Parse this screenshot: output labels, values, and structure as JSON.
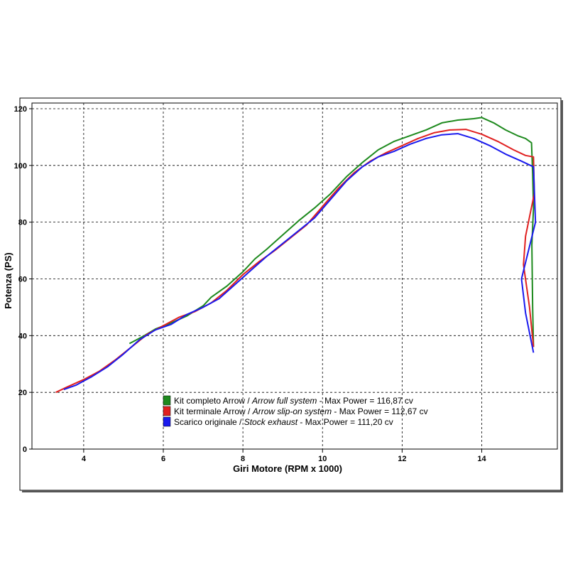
{
  "chart_data": {
    "type": "line",
    "xlabel": "Giri Motore (RPM x 1000)",
    "ylabel": "Potenza (PS)",
    "xlim": [
      2.7,
      15.9
    ],
    "ylim": [
      0,
      122
    ],
    "x_ticks": [
      4,
      6,
      8,
      10,
      12,
      14
    ],
    "y_ticks": [
      0,
      20,
      40,
      60,
      80,
      100,
      120
    ],
    "grid": true,
    "legend_position": "bottom-center",
    "series": [
      {
        "name": "Kit completo Arrow / Arrow full system - Max Power = 116,87 cv",
        "legend": {
          "normal": "Kit completo Arrow / ",
          "italic": "Arrow full system",
          "rest": " - Max Power = 116,87 cv"
        },
        "color": "#1e8a1e",
        "points": [
          [
            5.15,
            37.2
          ],
          [
            5.5,
            39.8
          ],
          [
            5.8,
            42.3
          ],
          [
            6.2,
            44.5
          ],
          [
            6.6,
            47.0
          ],
          [
            7.0,
            50.5
          ],
          [
            7.2,
            53.5
          ],
          [
            7.6,
            57.5
          ],
          [
            8.0,
            62.5
          ],
          [
            8.3,
            67.0
          ],
          [
            8.6,
            70.5
          ],
          [
            9.0,
            75.5
          ],
          [
            9.4,
            80.5
          ],
          [
            9.8,
            85.0
          ],
          [
            10.2,
            90.0
          ],
          [
            10.6,
            96.0
          ],
          [
            11.0,
            101.0
          ],
          [
            11.4,
            105.5
          ],
          [
            11.8,
            108.5
          ],
          [
            12.2,
            110.5
          ],
          [
            12.6,
            112.5
          ],
          [
            13.0,
            115.0
          ],
          [
            13.4,
            116.0
          ],
          [
            13.8,
            116.5
          ],
          [
            14.0,
            116.9
          ],
          [
            14.3,
            115.0
          ],
          [
            14.6,
            112.5
          ],
          [
            14.9,
            110.5
          ],
          [
            15.1,
            109.5
          ],
          [
            15.25,
            108.0
          ],
          [
            15.28,
            97.0
          ],
          [
            15.3,
            85.0
          ],
          [
            15.26,
            72.0
          ],
          [
            15.28,
            50.0
          ],
          [
            15.3,
            36.0
          ]
        ]
      },
      {
        "name": "Kit terminale Arrow / Arrow slip-on system - Max Power = 112,67 cv",
        "legend": {
          "normal": "Kit terminale Arrow / ",
          "italic": "Arrow slip-on system",
          "rest": " - Max Power = 112,67 cv"
        },
        "color": "#e02020",
        "points": [
          [
            3.3,
            20.0
          ],
          [
            3.6,
            22.0
          ],
          [
            4.0,
            24.5
          ],
          [
            4.4,
            27.5
          ],
          [
            4.8,
            31.5
          ],
          [
            5.2,
            36.0
          ],
          [
            5.6,
            40.5
          ],
          [
            6.0,
            43.5
          ],
          [
            6.4,
            46.5
          ],
          [
            6.8,
            48.5
          ],
          [
            7.2,
            51.5
          ],
          [
            7.6,
            56.0
          ],
          [
            8.0,
            61.5
          ],
          [
            8.4,
            66.0
          ],
          [
            8.8,
            70.0
          ],
          [
            9.2,
            74.5
          ],
          [
            9.6,
            79.0
          ],
          [
            10.0,
            85.5
          ],
          [
            10.4,
            92.0
          ],
          [
            10.8,
            97.5
          ],
          [
            11.2,
            101.5
          ],
          [
            11.6,
            104.5
          ],
          [
            12.0,
            107.0
          ],
          [
            12.4,
            109.5
          ],
          [
            12.8,
            111.5
          ],
          [
            13.2,
            112.5
          ],
          [
            13.6,
            112.7
          ],
          [
            14.0,
            111.0
          ],
          [
            14.4,
            108.5
          ],
          [
            14.8,
            105.5
          ],
          [
            15.1,
            103.5
          ],
          [
            15.3,
            103.0
          ],
          [
            15.32,
            90.0
          ],
          [
            15.1,
            75.0
          ],
          [
            15.05,
            65.0
          ],
          [
            15.2,
            50.0
          ],
          [
            15.3,
            36.0
          ]
        ]
      },
      {
        "name": "Scarico originale / Stock exhaust - Max Power = 111,20 cv",
        "legend": {
          "normal": "Scarico originale / ",
          "italic": "Stock exhaust",
          "rest": " - Max Power = 111,20 cv"
        },
        "color": "#1a1aee",
        "points": [
          [
            3.5,
            21.0
          ],
          [
            3.8,
            22.5
          ],
          [
            4.2,
            25.5
          ],
          [
            4.6,
            29.0
          ],
          [
            5.0,
            33.5
          ],
          [
            5.4,
            38.5
          ],
          [
            5.8,
            42.0
          ],
          [
            6.2,
            44.0
          ],
          [
            6.6,
            47.5
          ],
          [
            7.0,
            50.0
          ],
          [
            7.4,
            53.0
          ],
          [
            7.8,
            58.0
          ],
          [
            8.2,
            63.0
          ],
          [
            8.6,
            68.0
          ],
          [
            9.0,
            72.5
          ],
          [
            9.4,
            77.0
          ],
          [
            9.8,
            81.5
          ],
          [
            10.2,
            88.0
          ],
          [
            10.6,
            94.5
          ],
          [
            11.0,
            99.5
          ],
          [
            11.4,
            103.0
          ],
          [
            11.8,
            105.0
          ],
          [
            12.2,
            107.5
          ],
          [
            12.6,
            109.5
          ],
          [
            13.0,
            110.8
          ],
          [
            13.4,
            111.2
          ],
          [
            13.8,
            109.5
          ],
          [
            14.2,
            107.0
          ],
          [
            14.6,
            104.0
          ],
          [
            15.0,
            101.5
          ],
          [
            15.3,
            99.5
          ],
          [
            15.35,
            80.0
          ],
          [
            15.0,
            60.0
          ],
          [
            15.1,
            48.0
          ],
          [
            15.3,
            34.0
          ]
        ]
      }
    ]
  }
}
